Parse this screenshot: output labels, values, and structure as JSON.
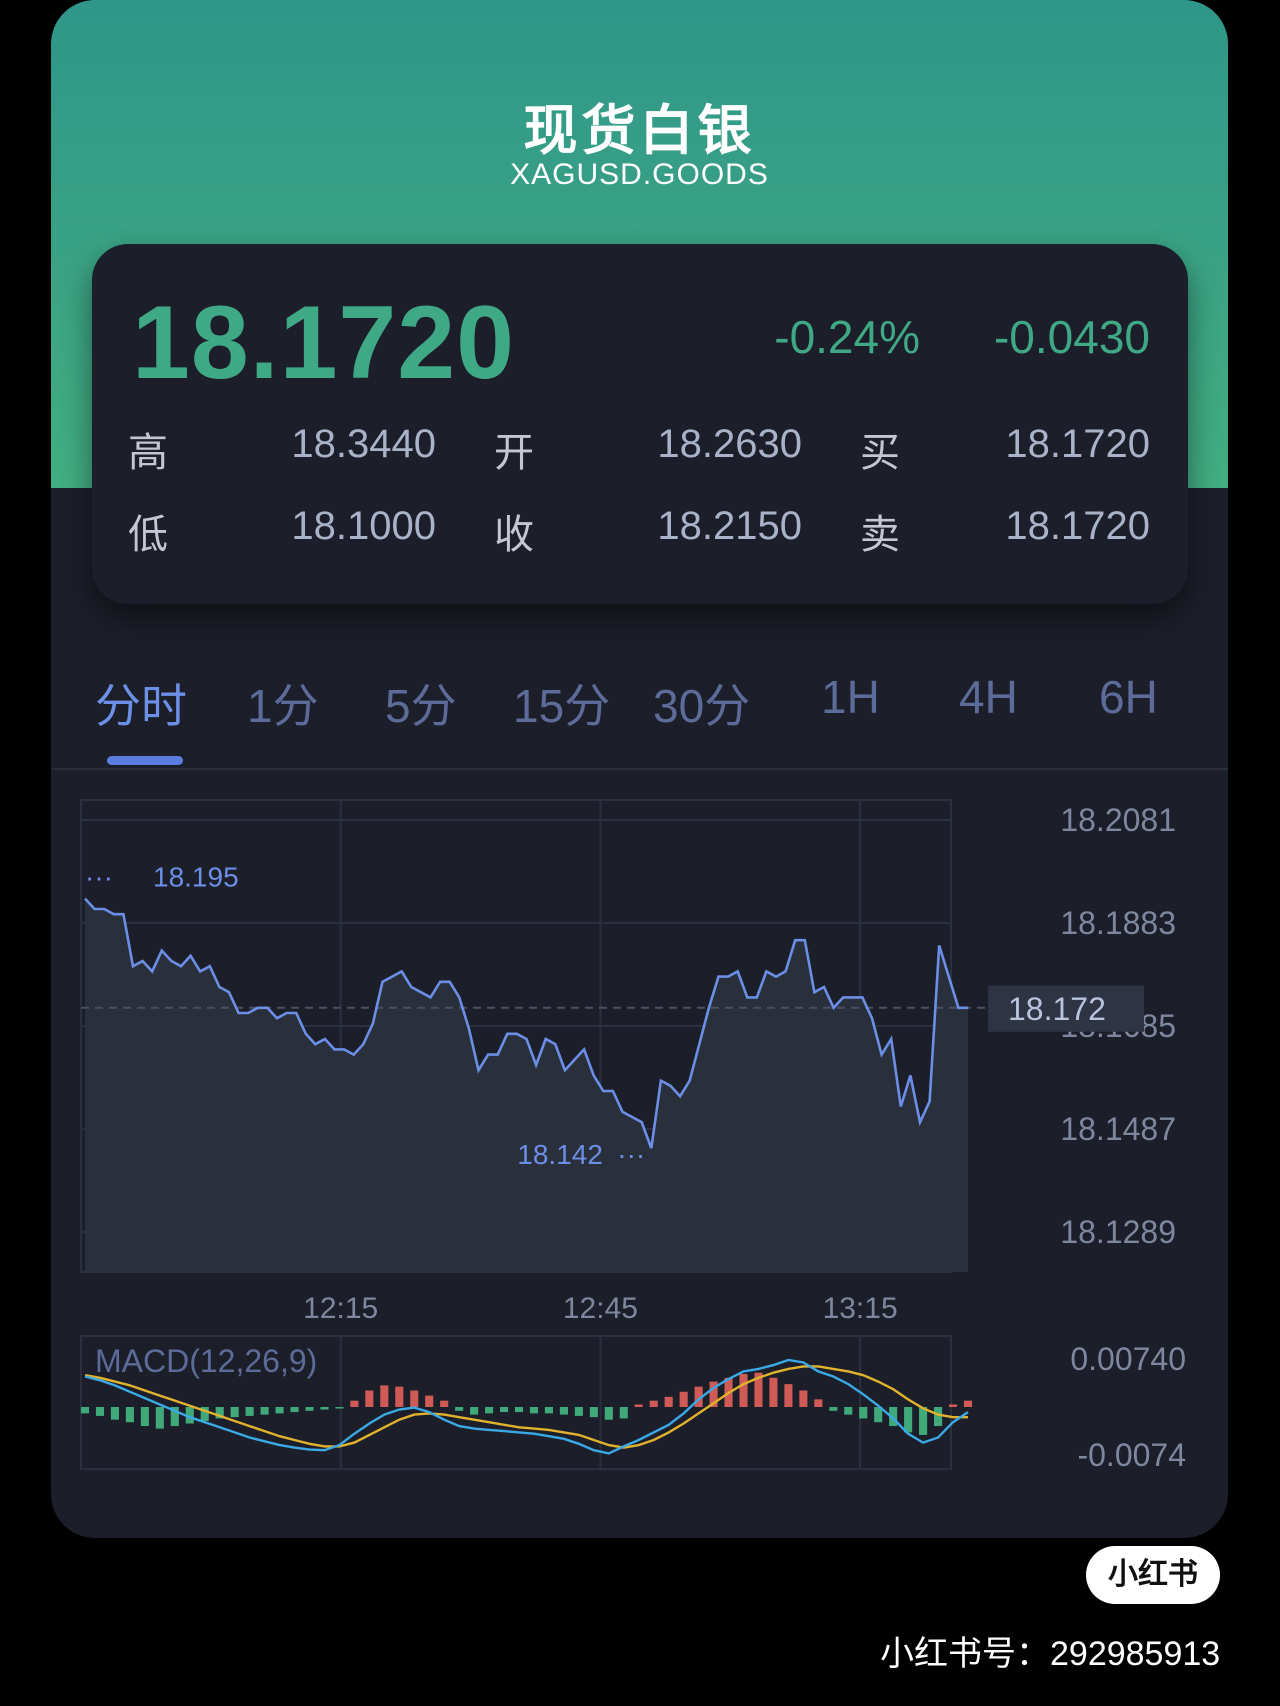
{
  "header": {
    "title": "现货白银",
    "symbol": "XAGUSD.GOODS"
  },
  "quote": {
    "price": "18.1720",
    "change_pct": "-0.24%",
    "change": "-0.0430",
    "stats": [
      {
        "label": "高",
        "value": "18.3440"
      },
      {
        "label": "开",
        "value": "18.2630"
      },
      {
        "label": "买",
        "value": "18.1720"
      },
      {
        "label": "低",
        "value": "18.1000"
      },
      {
        "label": "收",
        "value": "18.2150"
      },
      {
        "label": "卖",
        "value": "18.1720"
      }
    ],
    "up_color": "#3fa884"
  },
  "tabs": [
    {
      "label": "分时",
      "active": true
    },
    {
      "label": "1分"
    },
    {
      "label": "5分"
    },
    {
      "label": "15分"
    },
    {
      "label": "30分"
    },
    {
      "label": "1H"
    },
    {
      "label": "4H"
    },
    {
      "label": "6H"
    }
  ],
  "chart_data": {
    "type": "line",
    "y_ticks": [
      "18.2081",
      "18.1883",
      "18.1685",
      "18.1487",
      "18.1289"
    ],
    "ylim": [
      18.1289,
      18.2081
    ],
    "x_ticks": [
      "12:15",
      "12:45",
      "13:15"
    ],
    "current_price_label": "18.172",
    "max_label": "18.195",
    "min_label": "18.142",
    "series": [
      {
        "values": [
          18.193,
          18.191,
          18.191,
          18.19,
          18.19,
          18.18,
          18.181,
          18.179,
          18.183,
          18.181,
          18.18,
          18.182,
          18.179,
          18.18,
          18.176,
          18.175,
          18.171,
          18.171,
          18.172,
          18.172,
          18.17,
          18.171,
          18.171,
          18.167,
          18.165,
          18.166,
          18.164,
          18.164,
          18.163,
          18.165,
          18.169,
          18.177,
          18.178,
          18.179,
          18.176,
          18.175,
          18.174,
          18.177,
          18.177,
          18.174,
          18.168,
          18.16,
          18.163,
          18.163,
          18.167,
          18.167,
          18.166,
          18.161,
          18.166,
          18.165,
          18.16,
          18.162,
          18.164,
          18.159,
          18.156,
          18.156,
          18.152,
          18.151,
          18.15,
          18.145,
          18.158,
          18.157,
          18.155,
          18.158,
          18.165,
          18.172,
          18.178,
          18.178,
          18.179,
          18.174,
          18.174,
          18.179,
          18.178,
          18.179,
          18.185,
          18.185,
          18.175,
          18.176,
          18.172,
          18.174,
          18.174,
          18.174,
          18.17,
          18.163,
          18.166,
          18.153,
          18.159,
          18.15,
          18.154,
          18.184,
          18.178,
          18.172,
          18.172
        ]
      }
    ],
    "macd": {
      "label": "MACD(12,26,9)",
      "y_ticks": [
        "0.00740",
        "-0.0074"
      ],
      "ylim": [
        -0.0074,
        0.0074
      ],
      "dif": [
        0.0048,
        0.0042,
        0.0034,
        0.0024,
        0.0014,
        0.0004,
        -0.0006,
        -0.0016,
        -0.0024,
        -0.0032,
        -0.004,
        -0.0048,
        -0.0054,
        -0.006,
        -0.0064,
        -0.0067,
        -0.0068,
        -0.006,
        -0.0042,
        -0.0026,
        -0.0012,
        -0.0004,
        -0.0001,
        -0.0008,
        -0.002,
        -0.003,
        -0.0034,
        -0.0036,
        -0.0038,
        -0.004,
        -0.0042,
        -0.0046,
        -0.005,
        -0.0058,
        -0.0068,
        -0.0073,
        -0.0062,
        -0.0052,
        -0.004,
        -0.0028,
        -0.001,
        0.0012,
        0.003,
        0.0044,
        0.0056,
        0.006,
        0.0066,
        0.0074,
        0.007,
        0.0056,
        0.0048,
        0.0036,
        0.002,
        0.0002,
        -0.0018,
        -0.0042,
        -0.0056,
        -0.0048,
        -0.0024,
        -0.0008
      ],
      "dea": [
        0.005,
        0.0046,
        0.004,
        0.0034,
        0.0026,
        0.0018,
        0.001,
        0.0002,
        -0.0006,
        -0.0014,
        -0.0022,
        -0.003,
        -0.0038,
        -0.0046,
        -0.0052,
        -0.0058,
        -0.0062,
        -0.0062,
        -0.0056,
        -0.0044,
        -0.0032,
        -0.002,
        -0.0012,
        -0.001,
        -0.0012,
        -0.0016,
        -0.002,
        -0.0024,
        -0.0028,
        -0.0032,
        -0.0034,
        -0.0036,
        -0.004,
        -0.0044,
        -0.0052,
        -0.006,
        -0.0064,
        -0.006,
        -0.0052,
        -0.004,
        -0.0026,
        -0.001,
        0.0006,
        0.0022,
        0.0036,
        0.0046,
        0.0054,
        0.006,
        0.0064,
        0.0064,
        0.006,
        0.0056,
        0.005,
        0.004,
        0.0028,
        0.0012,
        -0.0002,
        -0.0012,
        -0.0016,
        -0.0016
      ],
      "hist": [
        -0.001,
        -0.0014,
        -0.002,
        -0.0024,
        -0.003,
        -0.0034,
        -0.003,
        -0.0026,
        -0.0022,
        -0.0018,
        -0.0016,
        -0.0014,
        -0.0012,
        -0.001,
        -0.0008,
        -0.0006,
        -0.0004,
        -0.0002,
        0.001,
        0.0026,
        0.0034,
        0.0032,
        0.0026,
        0.0018,
        0.001,
        -0.0006,
        -0.0012,
        -0.001,
        -0.0008,
        -0.0008,
        -0.001,
        -0.001,
        -0.0012,
        -0.0014,
        -0.0016,
        -0.002,
        -0.0018,
        0.0004,
        0.001,
        0.0016,
        0.0024,
        0.0032,
        0.004,
        0.0046,
        0.0052,
        0.0054,
        0.0046,
        0.0036,
        0.0026,
        0.0012,
        -0.0006,
        -0.0012,
        -0.0018,
        -0.0024,
        -0.003,
        -0.004,
        -0.0044,
        -0.003,
        0.0004,
        0.001
      ]
    },
    "colors": {
      "line": "#6b8ee6",
      "dif": "#3aa9e6",
      "dea": "#e0b22d",
      "hist_up": "#cf5a56",
      "hist_down": "#3fa97a"
    }
  },
  "watermark": {
    "badge": "小红书",
    "account": "小红书号：292985913"
  }
}
